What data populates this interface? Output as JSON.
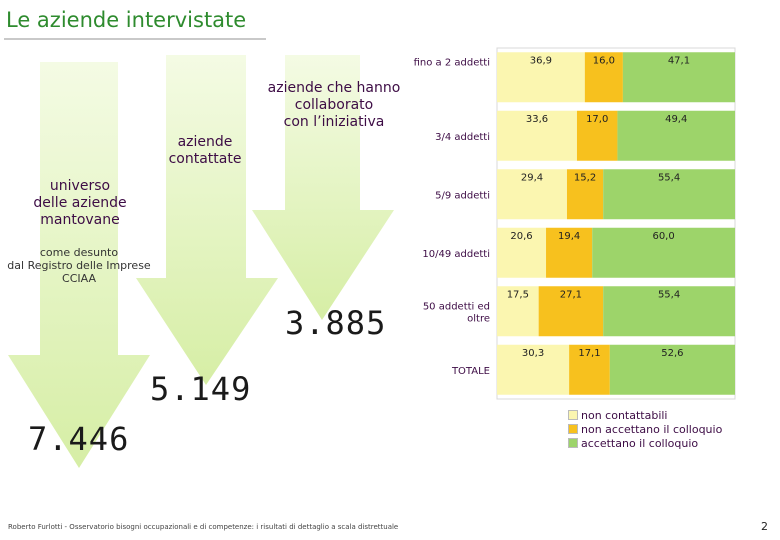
{
  "title": "Le aziende intervistate",
  "labels": {
    "universo": "universo\ndelle aziende\nmantovane",
    "universo_note": "come desunto\ndal Registro delle Imprese\nCCIAA",
    "contattate": "aziende\ncontattate",
    "collaborato": "aziende che hanno\ncollaborato\ncon l’iniziativa"
  },
  "numbers": {
    "universo": "7.446",
    "contattate": "5.149",
    "collaborato": "3.885"
  },
  "colors": {
    "non_contattabili": "#fbf6b0",
    "non_accettano": "#f7c11e",
    "accettano": "#9dd46a",
    "arrow": "#e9f5c8"
  },
  "chart_data": {
    "type": "bar",
    "orientation": "horizontal",
    "stacked": true,
    "categories": [
      "fino a 2 addetti",
      "3/4 addetti",
      "5/9 addetti",
      "10/49 addetti",
      "50 addetti ed oltre",
      "TOTALE"
    ],
    "series": [
      {
        "name": "non contattabili",
        "values": [
          36.9,
          33.6,
          29.4,
          20.6,
          17.5,
          30.3
        ]
      },
      {
        "name": "non accettano il colloquio",
        "values": [
          16.0,
          17.0,
          15.2,
          19.4,
          27.1,
          17.1
        ]
      },
      {
        "name": "accettano il colloquio",
        "values": [
          47.1,
          49.4,
          55.4,
          60.0,
          55.4,
          52.6
        ]
      }
    ],
    "value_labels": [
      [
        "36,9",
        "16,0",
        "47,1"
      ],
      [
        "33,6",
        "17,0",
        "49,4"
      ],
      [
        "29,4",
        "15,2",
        "55,4"
      ],
      [
        "20,6",
        "19,4",
        "60,0"
      ],
      [
        "17,5",
        "27,1",
        "55,4"
      ],
      [
        "30,3",
        "17,1",
        "52,6"
      ]
    ],
    "xlim": [
      0,
      100
    ],
    "legend": "bottom-right"
  },
  "footer": "Roberto Furlotti - Osservatorio bisogni occupazionali e di competenze: i risultati di dettaglio a scala distrettuale",
  "page_number": "2"
}
